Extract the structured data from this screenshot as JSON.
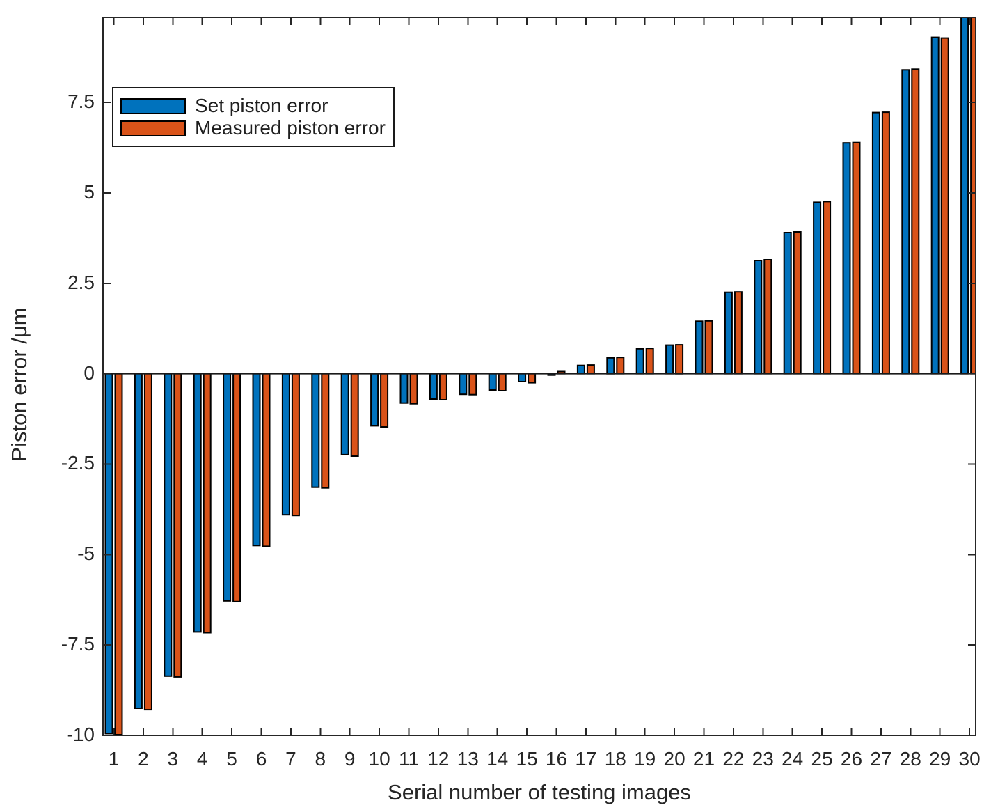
{
  "chart_data": {
    "type": "bar",
    "title": "",
    "xlabel": "Serial number of testing images",
    "ylabel": "Piston error /μm",
    "categories": [
      1,
      2,
      3,
      4,
      5,
      6,
      7,
      8,
      9,
      10,
      11,
      12,
      13,
      14,
      15,
      16,
      17,
      18,
      19,
      20,
      21,
      22,
      23,
      24,
      25,
      26,
      27,
      28,
      29,
      30
    ],
    "series": [
      {
        "name": "Set piston error",
        "color": "#0072BD",
        "values": [
          -9.95,
          -9.25,
          -8.36,
          -7.14,
          -6.28,
          -4.75,
          -3.9,
          -3.14,
          -2.24,
          -1.44,
          -0.81,
          -0.7,
          -0.57,
          -0.45,
          -0.22,
          -0.04,
          0.23,
          0.44,
          0.69,
          0.79,
          1.45,
          2.25,
          3.13,
          3.9,
          4.74,
          6.38,
          7.22,
          8.4,
          9.3,
          9.95
        ]
      },
      {
        "name": "Measured piston error",
        "color": "#D95319",
        "values": [
          -9.98,
          -9.29,
          -8.38,
          -7.16,
          -6.3,
          -4.77,
          -3.92,
          -3.16,
          -2.28,
          -1.47,
          -0.83,
          -0.72,
          -0.58,
          -0.47,
          -0.25,
          0.06,
          0.24,
          0.45,
          0.7,
          0.8,
          1.46,
          2.26,
          3.15,
          3.92,
          4.76,
          6.39,
          7.23,
          8.42,
          9.28,
          9.97
        ]
      }
    ],
    "ylim": [
      -10,
      9.85
    ],
    "yticks": [
      -10,
      -7.5,
      -5,
      -2.5,
      0,
      2.5,
      5,
      7.5
    ],
    "ytick_labels": [
      "-10",
      "-7.5",
      "-5",
      "-2.5",
      "0",
      "2.5",
      "5",
      "7.5"
    ],
    "grid": false,
    "legend_position": "top-left",
    "bar_edge_color": "#000000",
    "axis_color": "#262626",
    "baseline_color": "#1a1a1a"
  }
}
